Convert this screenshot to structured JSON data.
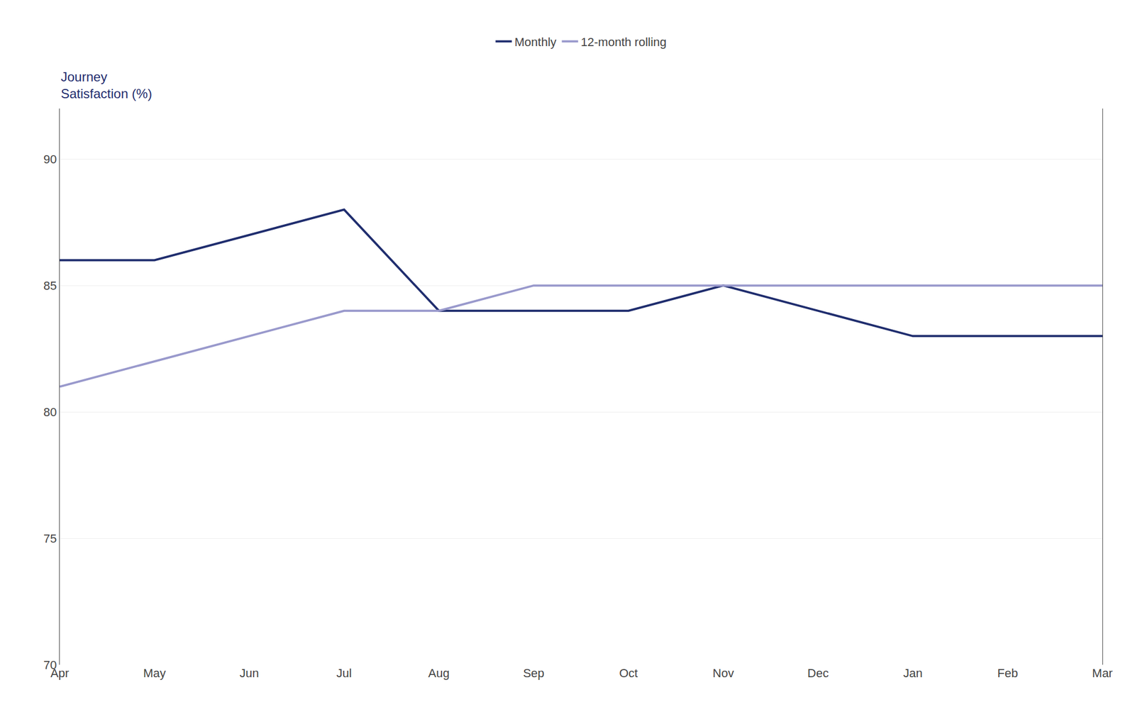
{
  "chart_data": {
    "type": "line",
    "ylabel": [
      "Journey",
      "Satisfaction (%)"
    ],
    "categories": [
      "Apr",
      "May",
      "Jun",
      "Jul",
      "Aug",
      "Sep",
      "Oct",
      "Nov",
      "Dec",
      "Jan",
      "Feb",
      "Mar"
    ],
    "series": [
      {
        "name": "Monthly",
        "color": "#1f2d6e",
        "values": [
          86,
          86,
          87,
          88,
          84,
          84,
          84,
          85,
          84,
          83,
          83,
          83
        ]
      },
      {
        "name": "12-month rolling",
        "color": "#9999cc",
        "values": [
          81,
          82,
          83,
          84,
          84,
          85,
          85,
          85,
          85,
          85,
          85,
          85
        ]
      }
    ],
    "ylim": [
      70,
      92
    ],
    "yticks": [
      70,
      75,
      80,
      85,
      90
    ],
    "grid": true,
    "legend": "top"
  }
}
